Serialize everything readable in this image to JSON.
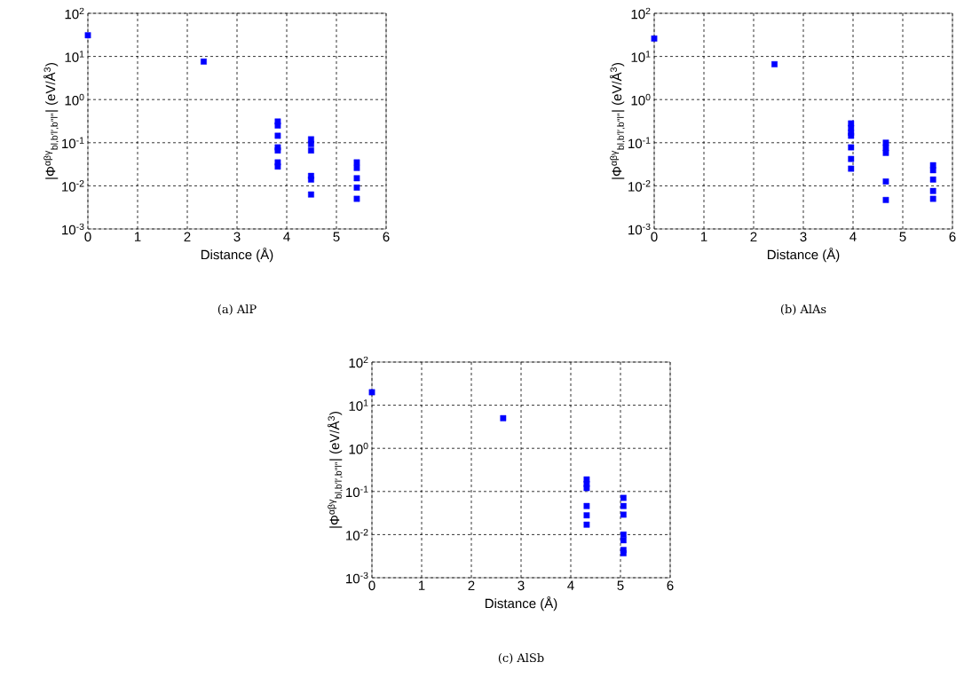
{
  "chart_data": [
    {
      "type": "scatter",
      "title": "(a) AlP",
      "xlabel": "Distance (Å)",
      "ylabel": "|Φ$^{αβγ}$$_{bl,b′l′,b″l″}$| (eV/Å$^{3}$)",
      "log": "y",
      "grid": true,
      "marker": "square",
      "color": "#0000ff",
      "x": [
        0,
        2.33,
        3.82,
        3.82,
        3.82,
        3.82,
        3.82,
        3.82,
        3.82,
        4.49,
        4.49,
        4.49,
        4.49,
        4.49,
        4.49,
        5.41,
        5.41,
        5.41,
        5.41,
        5.41
      ],
      "values": [
        31,
        7.6,
        0.31,
        0.25,
        0.145,
        0.078,
        0.066,
        0.035,
        0.028,
        0.12,
        0.093,
        0.066,
        0.017,
        0.014,
        0.0063,
        0.035,
        0.026,
        0.015,
        0.0091,
        0.005
      ],
      "xlim": [
        0,
        6
      ],
      "xticks": [
        0,
        1,
        2,
        3,
        4,
        5,
        6
      ],
      "ylim": [
        0.001,
        100
      ],
      "yticks": [
        {
          "value": 0.001,
          "label": "10$^{-3}$"
        },
        {
          "value": 0.01,
          "label": "10$^{-2}$"
        },
        {
          "value": 0.1,
          "label": "10$^{-1}$"
        },
        {
          "value": 1,
          "label": "10$^{0}$"
        },
        {
          "value": 10,
          "label": "10$^{1}$"
        },
        {
          "value": 100,
          "label": "10$^{2}$"
        }
      ]
    },
    {
      "type": "scatter",
      "title": "(b) AlAs",
      "xlabel": "Distance (Å)",
      "ylabel": "|Φ$^{αβγ}$$_{bl,b′l′,b″l″}$| (eV/Å$^{3}$)",
      "log": "y",
      "grid": true,
      "marker": "square",
      "color": "#0000ff",
      "x": [
        0,
        2.42,
        3.96,
        3.96,
        3.96,
        3.96,
        3.96,
        3.96,
        3.96,
        4.66,
        4.66,
        4.66,
        4.66,
        4.66,
        5.61,
        5.61,
        5.61,
        5.61,
        5.61
      ],
      "values": [
        26,
        6.6,
        0.28,
        0.22,
        0.17,
        0.145,
        0.078,
        0.042,
        0.025,
        0.1,
        0.076,
        0.058,
        0.0126,
        0.0047,
        0.03,
        0.023,
        0.014,
        0.0076,
        0.005
      ],
      "xlim": [
        0,
        6
      ],
      "xticks": [
        0,
        1,
        2,
        3,
        4,
        5,
        6
      ],
      "ylim": [
        0.001,
        100
      ],
      "yticks": [
        {
          "value": 0.001,
          "label": "10$^{-3}$"
        },
        {
          "value": 0.01,
          "label": "10$^{-2}$"
        },
        {
          "value": 0.1,
          "label": "10$^{-1}$"
        },
        {
          "value": 1,
          "label": "10$^{0}$"
        },
        {
          "value": 10,
          "label": "10$^{1}$"
        },
        {
          "value": 100,
          "label": "10$^{2}$"
        }
      ]
    },
    {
      "type": "scatter",
      "title": "(c) AlSb",
      "xlabel": "Distance (Å)",
      "ylabel": "|Φ$^{αβγ}$$_{bl,b′l′,b″l″}$| (eV/Å$^{3}$)",
      "log": "y",
      "grid": true,
      "marker": "square",
      "color": "#0000ff",
      "x": [
        0,
        2.64,
        4.32,
        4.32,
        4.32,
        4.32,
        4.32,
        4.32,
        5.06,
        5.06,
        5.06,
        5.06,
        5.06,
        5.06,
        5.06
      ],
      "values": [
        20,
        5.0,
        0.19,
        0.15,
        0.12,
        0.046,
        0.028,
        0.017,
        0.071,
        0.046,
        0.029,
        0.01,
        0.0074,
        0.0044,
        0.0037
      ],
      "xlim": [
        0,
        6
      ],
      "xticks": [
        0,
        1,
        2,
        3,
        4,
        5,
        6
      ],
      "ylim": [
        0.001,
        100
      ],
      "yticks": [
        {
          "value": 0.001,
          "label": "10$^{-3}$"
        },
        {
          "value": 0.01,
          "label": "10$^{-2}$"
        },
        {
          "value": 0.1,
          "label": "10$^{-1}$"
        },
        {
          "value": 1,
          "label": "10$^{0}$"
        },
        {
          "value": 10,
          "label": "10$^{1}$"
        },
        {
          "value": 100,
          "label": "10$^{2}$"
        }
      ]
    }
  ]
}
